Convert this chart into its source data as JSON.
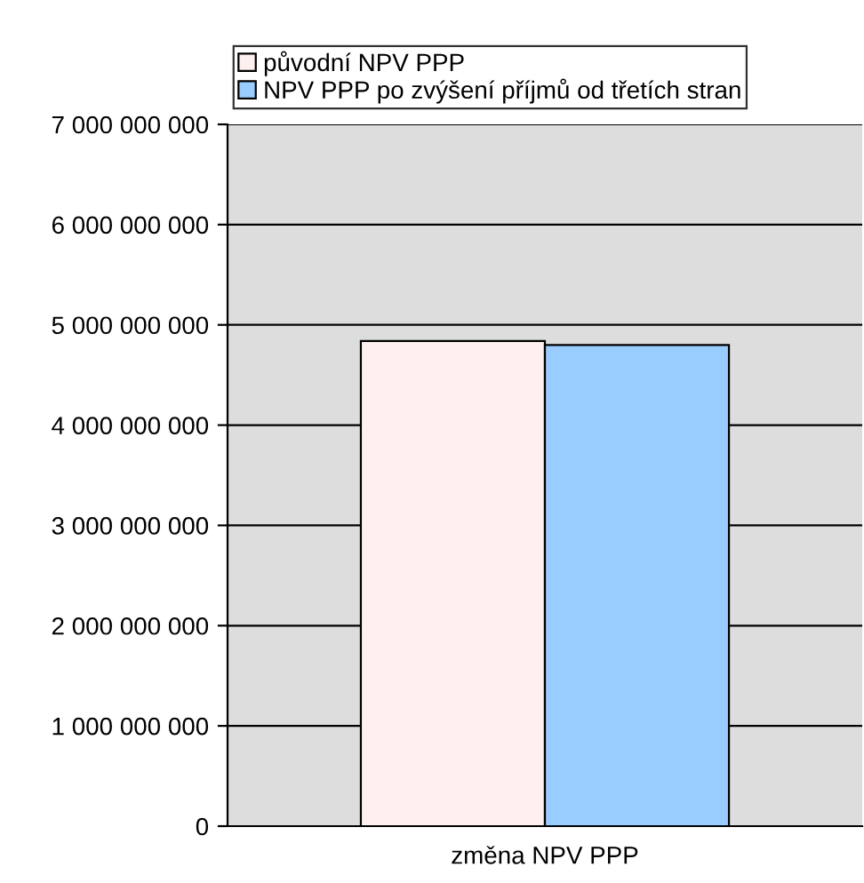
{
  "chart_data": {
    "type": "bar",
    "categories": [
      "změna NPV PPP"
    ],
    "series": [
      {
        "name": "původní NPV PPP",
        "color": "#fdf0ee",
        "values": [
          4840000000
        ]
      },
      {
        "name": "NPV PPP po zvýšení příjmů od třetích stran",
        "color": "#99ccff",
        "values": [
          4800000000
        ]
      }
    ],
    "ylim": [
      0,
      7000000000
    ],
    "yticks": [
      0,
      {
        "value": 1000000000,
        "label": "1 000 000 000"
      },
      {
        "value": 2000000000,
        "label": "2 000 000 000"
      },
      {
        "value": 3000000000,
        "label": "3 000 000 000"
      },
      {
        "value": 4000000000,
        "label": "4 000 000 000"
      },
      {
        "value": 5000000000,
        "label": "5 000 000 000"
      },
      {
        "value": 6000000000,
        "label": "6 000 000 000"
      },
      {
        "value": 7000000000,
        "label": "7 000 000 000"
      }
    ],
    "grid": "y",
    "legend": "top"
  }
}
